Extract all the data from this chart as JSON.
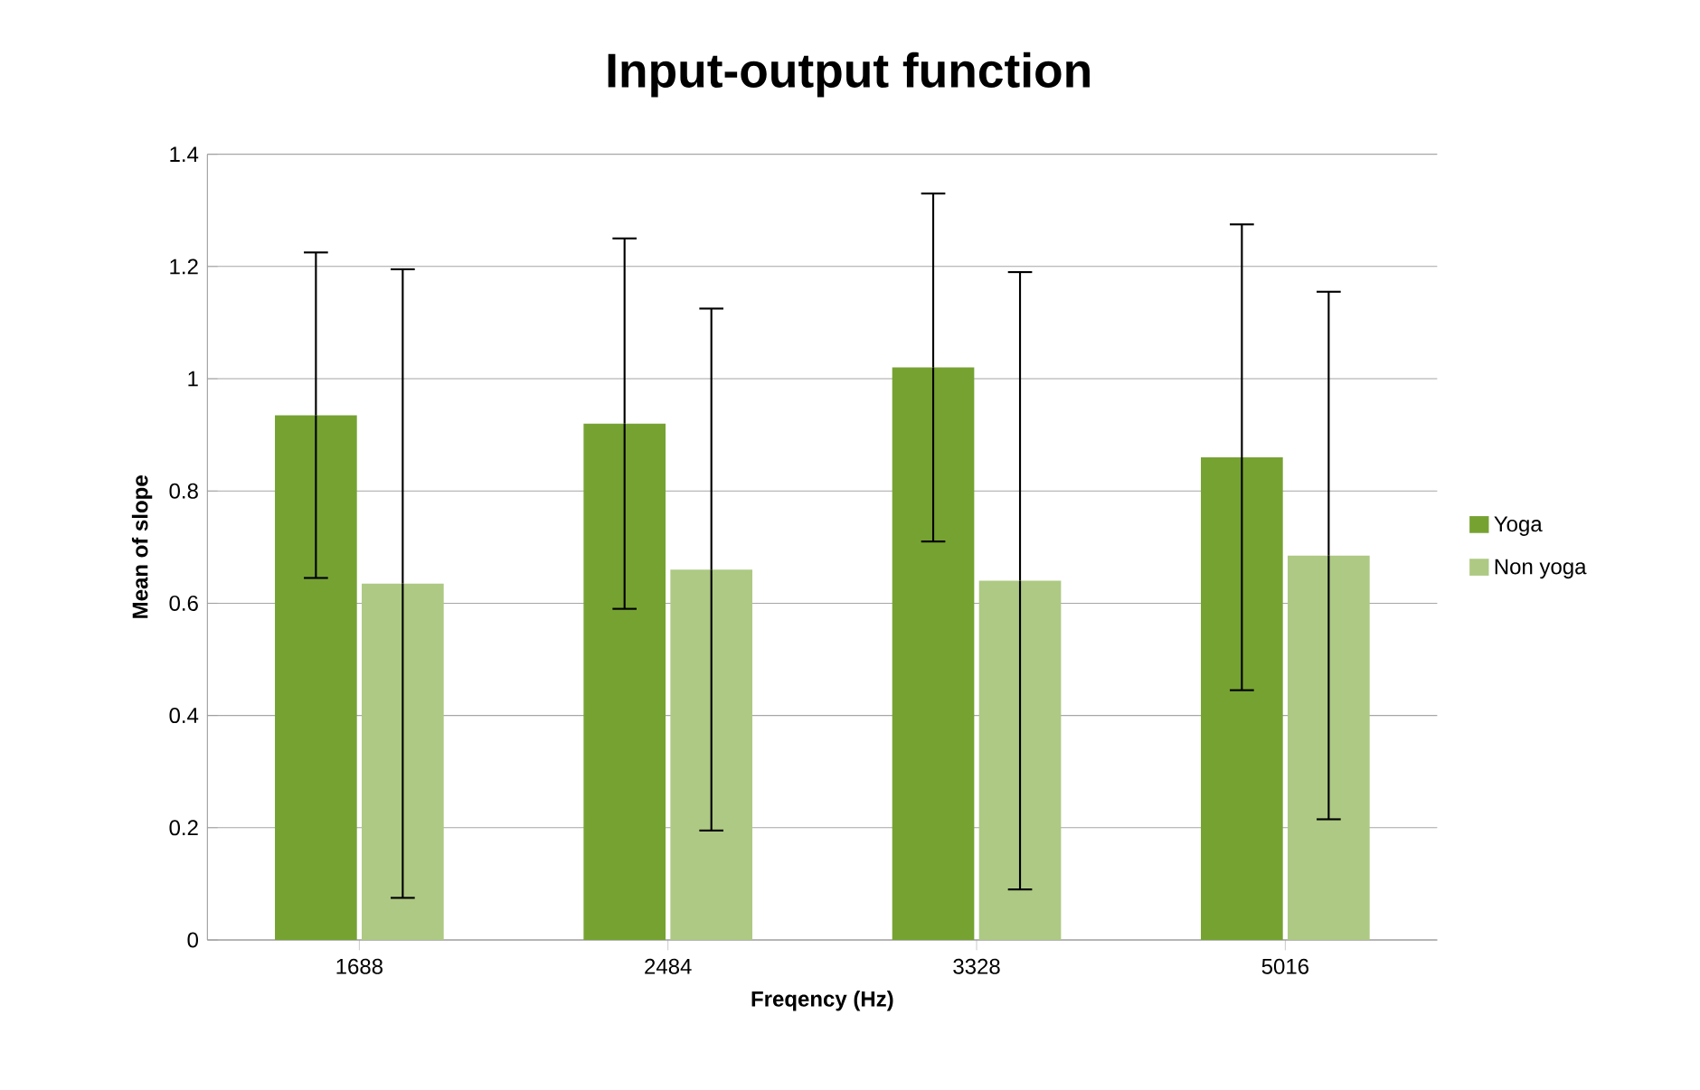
{
  "chart_data": {
    "type": "bar",
    "title": "Input-output function",
    "xlabel": "Freqency (Hz)",
    "ylabel": "Mean of slope",
    "categories": [
      "1688",
      "2484",
      "3328",
      "5016"
    ],
    "series": [
      {
        "name": "Yoga",
        "color": "#76a232",
        "values": [
          0.935,
          0.92,
          1.02,
          0.86
        ],
        "errors": [
          0.29,
          0.33,
          0.31,
          0.415
        ]
      },
      {
        "name": "Non yoga",
        "color": "#adc983",
        "values": [
          0.635,
          0.66,
          0.64,
          0.685
        ],
        "errors": [
          0.56,
          0.465,
          0.55,
          0.47
        ]
      }
    ],
    "ylim": [
      0,
      1.4
    ],
    "yticks": [
      0,
      0.2,
      0.4,
      0.6,
      0.8,
      1,
      1.2,
      1.4
    ],
    "grid": "y",
    "legend": "right"
  }
}
